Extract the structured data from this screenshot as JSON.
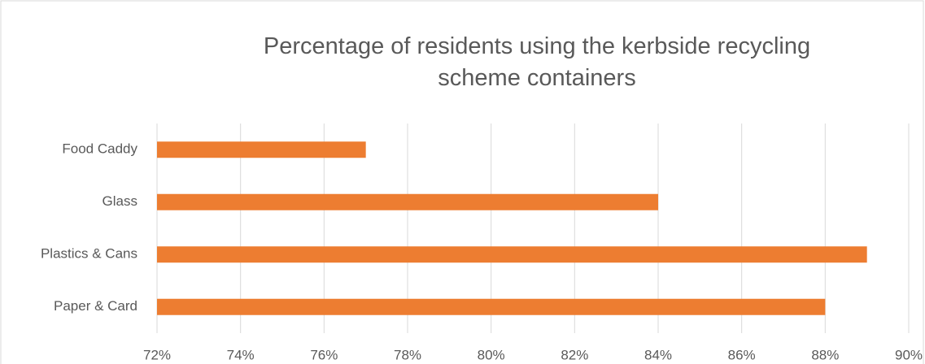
{
  "chart_data": {
    "type": "bar",
    "orientation": "horizontal",
    "title": "Percentage of residents using the kerbside recycling scheme containers",
    "categories": [
      "Food Caddy",
      "Glass",
      "Plastics & Cans",
      "Paper & Card"
    ],
    "values": [
      77,
      84,
      89,
      88
    ],
    "color": "#ed7d31",
    "xlim": [
      72,
      90
    ],
    "xticks": [
      {
        "value": 72,
        "label": "72%"
      },
      {
        "value": 74,
        "label": "74%"
      },
      {
        "value": 76,
        "label": "76%"
      },
      {
        "value": 78,
        "label": "78%"
      },
      {
        "value": 80,
        "label": "80%"
      },
      {
        "value": 82,
        "label": "82%"
      },
      {
        "value": 84,
        "label": "84%"
      },
      {
        "value": 86,
        "label": "86%"
      },
      {
        "value": 88,
        "label": "88%"
      },
      {
        "value": 90,
        "label": "90%"
      }
    ],
    "grid": true
  }
}
